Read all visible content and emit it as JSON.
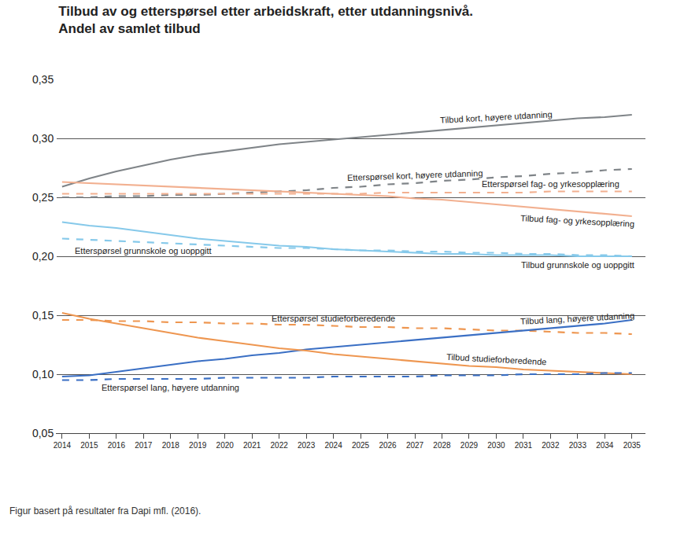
{
  "chart_data": {
    "type": "line",
    "title": "Tilbud av og etterspørsel etter arbeidskraft, etter utdanningsnivå.",
    "subtitle": "Andel av samlet tilbud",
    "annotations": [
      "Figur basert på resultater fra Dapi mfl. (2016)."
    ],
    "x": [
      2014,
      2015,
      2016,
      2017,
      2018,
      2019,
      2020,
      2021,
      2022,
      2023,
      2024,
      2025,
      2026,
      2027,
      2028,
      2029,
      2030,
      2031,
      2032,
      2033,
      2034,
      2035
    ],
    "xlim": [
      2013.8,
      2035.5
    ],
    "xticks": [
      2014,
      2015,
      2016,
      2017,
      2018,
      2019,
      2020,
      2021,
      2022,
      2023,
      2024,
      2025,
      2026,
      2027,
      2028,
      2029,
      2030,
      2031,
      2032,
      2033,
      2034,
      2035
    ],
    "ylim": [
      0.05,
      0.35
    ],
    "yticks": [
      {
        "value": 0.05,
        "label": "0,05"
      },
      {
        "value": 0.1,
        "label": "0,10"
      },
      {
        "value": 0.15,
        "label": "0,15"
      },
      {
        "value": 0.2,
        "label": "0,20"
      },
      {
        "value": 0.25,
        "label": "0,25"
      },
      {
        "value": 0.3,
        "label": "0,30"
      },
      {
        "value": 0.35,
        "label": "0,35"
      }
    ],
    "grid": true,
    "series": [
      {
        "name": "Tilbud kort, høyere utdanning",
        "color": "#7f8488",
        "line_style": "solid",
        "values": [
          0.259,
          0.266,
          0.272,
          0.277,
          0.282,
          0.286,
          0.289,
          0.292,
          0.295,
          0.297,
          0.299,
          0.301,
          0.303,
          0.305,
          0.307,
          0.309,
          0.311,
          0.313,
          0.315,
          0.317,
          0.318,
          0.32
        ]
      },
      {
        "name": "Etterspørsel kort, høyere utdanning",
        "color": "#7f8488",
        "line_style": "dash",
        "values": [
          0.25,
          0.25,
          0.251,
          0.251,
          0.252,
          0.252,
          0.253,
          0.254,
          0.255,
          0.256,
          0.258,
          0.259,
          0.261,
          0.262,
          0.264,
          0.265,
          0.267,
          0.268,
          0.27,
          0.271,
          0.273,
          0.274
        ]
      },
      {
        "name": "Etterspørsel fag- og yrkesopplæring",
        "color": "#f2b090",
        "line_style": "dash",
        "values": [
          0.253,
          0.253,
          0.253,
          0.253,
          0.253,
          0.253,
          0.253,
          0.253,
          0.253,
          0.253,
          0.253,
          0.253,
          0.254,
          0.254,
          0.254,
          0.254,
          0.254,
          0.254,
          0.255,
          0.255,
          0.255,
          0.255
        ]
      },
      {
        "name": "Tilbud fag- og yrkesopplæring",
        "color": "#f2b090",
        "line_style": "solid",
        "values": [
          0.263,
          0.262,
          0.261,
          0.26,
          0.259,
          0.258,
          0.257,
          0.256,
          0.255,
          0.254,
          0.253,
          0.252,
          0.251,
          0.249,
          0.248,
          0.246,
          0.244,
          0.242,
          0.24,
          0.238,
          0.236,
          0.234
        ]
      },
      {
        "name": "Etterspørsel grunnskole og uoppgitt",
        "color": "#86c9ea",
        "line_style": "dash",
        "values": [
          0.215,
          0.214,
          0.213,
          0.212,
          0.211,
          0.21,
          0.209,
          0.208,
          0.207,
          0.207,
          0.206,
          0.205,
          0.205,
          0.204,
          0.204,
          0.203,
          0.203,
          0.202,
          0.202,
          0.201,
          0.201,
          0.2
        ]
      },
      {
        "name": "Tilbud grunnskole og uoppgitt",
        "color": "#86c9ea",
        "line_style": "solid",
        "values": [
          0.229,
          0.226,
          0.224,
          0.221,
          0.218,
          0.215,
          0.213,
          0.211,
          0.209,
          0.208,
          0.206,
          0.205,
          0.204,
          0.203,
          0.202,
          0.202,
          0.201,
          0.201,
          0.201,
          0.2,
          0.2,
          0.2
        ]
      },
      {
        "name": "Etterspørsel studieforberedende",
        "color": "#ee9650",
        "line_style": "dash",
        "values": [
          0.146,
          0.146,
          0.145,
          0.145,
          0.144,
          0.144,
          0.143,
          0.143,
          0.142,
          0.142,
          0.141,
          0.14,
          0.14,
          0.139,
          0.139,
          0.138,
          0.137,
          0.137,
          0.136,
          0.135,
          0.135,
          0.134
        ]
      },
      {
        "name": "Tilbud lang, høyere utdanning",
        "color": "#3a6fc4",
        "line_style": "solid",
        "values": [
          0.098,
          0.099,
          0.102,
          0.105,
          0.108,
          0.111,
          0.113,
          0.116,
          0.118,
          0.121,
          0.123,
          0.125,
          0.127,
          0.129,
          0.131,
          0.133,
          0.135,
          0.137,
          0.139,
          0.141,
          0.143,
          0.146
        ]
      },
      {
        "name": "Tilbud studieforberedende",
        "color": "#ee9650",
        "line_style": "solid",
        "values": [
          0.152,
          0.147,
          0.143,
          0.139,
          0.135,
          0.131,
          0.128,
          0.125,
          0.122,
          0.12,
          0.117,
          0.115,
          0.113,
          0.111,
          0.109,
          0.107,
          0.106,
          0.104,
          0.103,
          0.102,
          0.101,
          0.1
        ]
      },
      {
        "name": "Etterspørsel lang, høyere utdanning",
        "color": "#3a6fc4",
        "line_style": "dash",
        "values": [
          0.095,
          0.095,
          0.096,
          0.096,
          0.096,
          0.096,
          0.097,
          0.097,
          0.097,
          0.097,
          0.098,
          0.098,
          0.098,
          0.098,
          0.099,
          0.099,
          0.099,
          0.1,
          0.1,
          0.1,
          0.101,
          0.101
        ]
      }
    ]
  }
}
